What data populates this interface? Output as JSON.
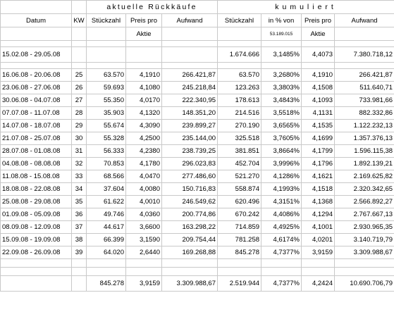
{
  "header": {
    "group_current": "aktuelle Rückkäufe",
    "group_cumulative": "kumuliert",
    "columns": {
      "datum": "Datum",
      "kw": "KW",
      "stueckzahl": "Stückzahl",
      "preis_pro": "Preis pro",
      "aktie": "Aktie",
      "aufwand": "Aufwand",
      "cum_stueckzahl": "Stückzahl",
      "in_prozent_von": "in % von",
      "basis": "53.189.015",
      "cum_preis_pro": "Preis pro",
      "cum_aktie": "Aktie",
      "cum_aufwand": "Aufwand"
    }
  },
  "opening_row": {
    "datum": "15.02.08 - 29.05.08",
    "cum_stueck": "1.674.666",
    "cum_pct": "3,1485%",
    "cum_preis": "4,4073",
    "cum_aufwand": "7.380.718,12"
  },
  "rows": [
    {
      "datum": "16.06.08 - 20.06.08",
      "kw": "25",
      "stueck": "63.570",
      "preis": "4,1910",
      "aufwand": "266.421,87",
      "cum_stueck": "63.570",
      "cum_pct": "3,2680%",
      "cum_preis": "4,1910",
      "cum_aufwand": "266.421,87"
    },
    {
      "datum": "23.06.08 - 27.06.08",
      "kw": "26",
      "stueck": "59.693",
      "preis": "4,1080",
      "aufwand": "245.218,84",
      "cum_stueck": "123.263",
      "cum_pct": "3,3803%",
      "cum_preis": "4,1508",
      "cum_aufwand": "511.640,71"
    },
    {
      "datum": "30.06.08 - 04.07.08",
      "kw": "27",
      "stueck": "55.350",
      "preis": "4,0170",
      "aufwand": "222.340,95",
      "cum_stueck": "178.613",
      "cum_pct": "3,4843%",
      "cum_preis": "4,1093",
      "cum_aufwand": "733.981,66"
    },
    {
      "datum": "07.07.08 - 11.07.08",
      "kw": "28",
      "stueck": "35.903",
      "preis": "4,1320",
      "aufwand": "148.351,20",
      "cum_stueck": "214.516",
      "cum_pct": "3,5518%",
      "cum_preis": "4,1131",
      "cum_aufwand": "882.332,86"
    },
    {
      "datum": "14.07.08 - 18.07.08",
      "kw": "29",
      "stueck": "55.674",
      "preis": "4,3090",
      "aufwand": "239.899,27",
      "cum_stueck": "270.190",
      "cum_pct": "3,6565%",
      "cum_preis": "4,1535",
      "cum_aufwand": "1.122.232,13"
    },
    {
      "datum": "21.07.08 - 25.07.08",
      "kw": "30",
      "stueck": "55.328",
      "preis": "4,2500",
      "aufwand": "235.144,00",
      "cum_stueck": "325.518",
      "cum_pct": "3,7605%",
      "cum_preis": "4,1699",
      "cum_aufwand": "1.357.376,13"
    },
    {
      "datum": "28.07.08 - 01.08.08",
      "kw": "31",
      "stueck": "56.333",
      "preis": "4,2380",
      "aufwand": "238.739,25",
      "cum_stueck": "381.851",
      "cum_pct": "3,8664%",
      "cum_preis": "4,1799",
      "cum_aufwand": "1.596.115,38"
    },
    {
      "datum": "04.08.08 - 08.08.08",
      "kw": "32",
      "stueck": "70.853",
      "preis": "4,1780",
      "aufwand": "296.023,83",
      "cum_stueck": "452.704",
      "cum_pct": "3,9996%",
      "cum_preis": "4,1796",
      "cum_aufwand": "1.892.139,21"
    },
    {
      "datum": "11.08.08 - 15.08.08",
      "kw": "33",
      "stueck": "68.566",
      "preis": "4,0470",
      "aufwand": "277.486,60",
      "cum_stueck": "521.270",
      "cum_pct": "4,1286%",
      "cum_preis": "4,1621",
      "cum_aufwand": "2.169.625,82"
    },
    {
      "datum": "18.08.08 - 22.08.08",
      "kw": "34",
      "stueck": "37.604",
      "preis": "4,0080",
      "aufwand": "150.716,83",
      "cum_stueck": "558.874",
      "cum_pct": "4,1993%",
      "cum_preis": "4,1518",
      "cum_aufwand": "2.320.342,65"
    },
    {
      "datum": "25.08.08 - 29.08.08",
      "kw": "35",
      "stueck": "61.622",
      "preis": "4,0010",
      "aufwand": "246.549,62",
      "cum_stueck": "620.496",
      "cum_pct": "4,3151%",
      "cum_preis": "4,1368",
      "cum_aufwand": "2.566.892,27"
    },
    {
      "datum": "01.09.08 - 05.09.08",
      "kw": "36",
      "stueck": "49.746",
      "preis": "4,0360",
      "aufwand": "200.774,86",
      "cum_stueck": "670.242",
      "cum_pct": "4,4086%",
      "cum_preis": "4,1294",
      "cum_aufwand": "2.767.667,13"
    },
    {
      "datum": "08.09.08 - 12.09.08",
      "kw": "37",
      "stueck": "44.617",
      "preis": "3,6600",
      "aufwand": "163.298,22",
      "cum_stueck": "714.859",
      "cum_pct": "4,4925%",
      "cum_preis": "4,1001",
      "cum_aufwand": "2.930.965,35"
    },
    {
      "datum": "15.09.08 - 19.09.08",
      "kw": "38",
      "stueck": "66.399",
      "preis": "3,1590",
      "aufwand": "209.754,44",
      "cum_stueck": "781.258",
      "cum_pct": "4,6174%",
      "cum_preis": "4,0201",
      "cum_aufwand": "3.140.719,79"
    },
    {
      "datum": "22.09.08 - 26.09.08",
      "kw": "39",
      "stueck": "64.020",
      "preis": "2,6440",
      "aufwand": "169.268,88",
      "cum_stueck": "845.278",
      "cum_pct": "4,7377%",
      "cum_preis": "3,9159",
      "cum_aufwand": "3.309.988,67"
    }
  ],
  "totals": {
    "stueck": "845.278",
    "preis": "3,9159",
    "aufwand": "3.309.988,67",
    "cum_stueck": "2.519.944",
    "cum_pct": "4,7377%",
    "cum_preis": "4,2424",
    "cum_aufwand": "10.690.706,79"
  }
}
